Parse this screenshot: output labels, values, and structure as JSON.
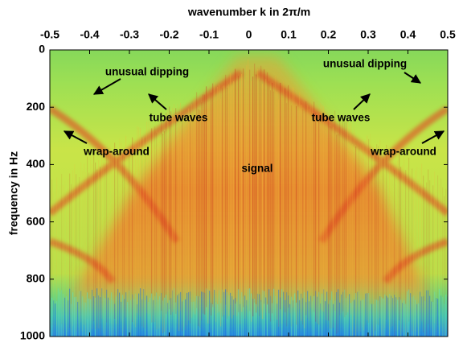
{
  "chart_data": {
    "type": "heatmap",
    "xlabel": "wavenumber k in 2π/m",
    "ylabel": "frequency in Hz",
    "xlim": [
      -0.5,
      0.5
    ],
    "xticks": [
      -0.5,
      -0.4,
      -0.3,
      -0.2,
      -0.1,
      0,
      0.1,
      0.2,
      0.3,
      0.4,
      0.5
    ],
    "ylim": [
      1000,
      0
    ],
    "yticks": [
      0,
      200,
      400,
      600,
      800,
      1000
    ],
    "annotations": [
      "unusual dipping",
      "unusual dipping",
      "tube waves",
      "tube waves",
      "wrap-around",
      "wrap-around",
      "signal"
    ]
  }
}
